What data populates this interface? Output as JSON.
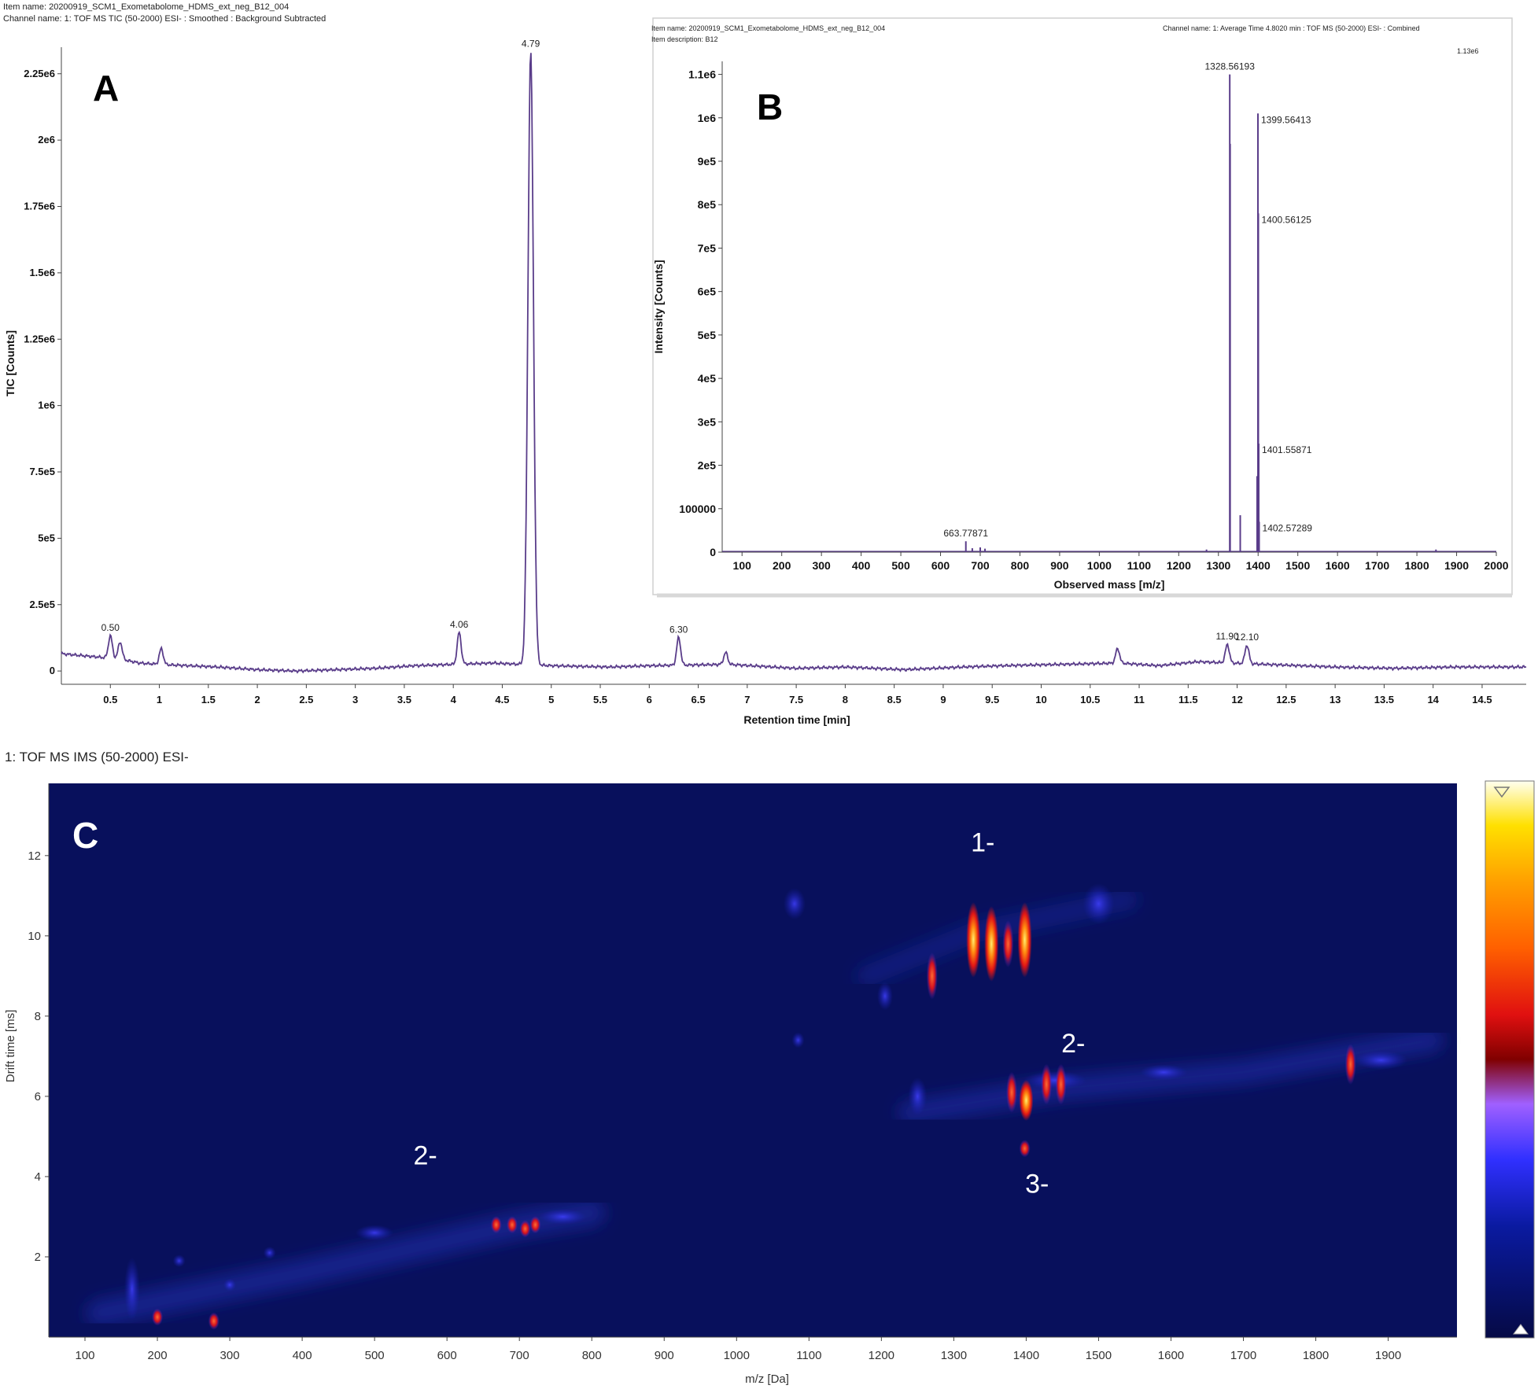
{
  "header_a": {
    "item_name": "Item name: 20200919_SCM1_Exometabolome_HDMS_ext_neg_B12_004",
    "channel_name": "Channel name: 1: TOF MS TIC (50-2000) ESI- : Smoothed : Background Subtracted"
  },
  "header_b": {
    "item_name": "Item name: 20200919_SCM1_Exometabolome_HDMS_ext_neg_B12_004",
    "item_description": "Item description: B12",
    "channel_name": "Channel name: 1: Average Time 4.8020 min : TOF MS (50-2000) ESI- : Combined",
    "max_label": "1.13e6"
  },
  "header_c": {
    "channel_name": "1: TOF MS IMS (50-2000) ESI-"
  },
  "panel_labels": {
    "a": "A",
    "b": "B",
    "c": "C"
  },
  "colors": {
    "trace": "#5a3d8a",
    "heatmap_bg": "#08105c"
  },
  "chart_data": [
    {
      "panel": "A",
      "type": "line",
      "xlabel": "Retention time [min]",
      "ylabel": "TIC [Counts]",
      "xlim": [
        0,
        14.95
      ],
      "ylim": [
        -50000,
        2350000
      ],
      "xticks": [
        "0.5",
        "1",
        "1.5",
        "2",
        "2.5",
        "3",
        "3.5",
        "4",
        "4.5",
        "5",
        "5.5",
        "6",
        "6.5",
        "7",
        "7.5",
        "8",
        "8.5",
        "9",
        "9.5",
        "10",
        "10.5",
        "11",
        "11.5",
        "12",
        "12.5",
        "13",
        "13.5",
        "14",
        "14.5"
      ],
      "yticks": [
        {
          "value": 0,
          "label": "0"
        },
        {
          "value": 250000,
          "label": "2.5e5"
        },
        {
          "value": 500000,
          "label": "5e5"
        },
        {
          "value": 750000,
          "label": "7.5e5"
        },
        {
          "value": 1000000,
          "label": "1e6"
        },
        {
          "value": 1250000,
          "label": "1.25e6"
        },
        {
          "value": 1500000,
          "label": "1.5e6"
        },
        {
          "value": 1750000,
          "label": "1.75e6"
        },
        {
          "value": 2000000,
          "label": "2e6"
        },
        {
          "value": 2250000,
          "label": "2.25e6"
        }
      ],
      "baseline": [
        [
          0.0,
          65000
        ],
        [
          0.3,
          55000
        ],
        [
          0.6,
          45000
        ],
        [
          0.8,
          30000
        ],
        [
          1.0,
          25000
        ],
        [
          1.3,
          20000
        ],
        [
          1.6,
          15000
        ],
        [
          2.0,
          5000
        ],
        [
          2.4,
          0
        ],
        [
          2.8,
          5000
        ],
        [
          3.2,
          10000
        ],
        [
          3.6,
          20000
        ],
        [
          4.0,
          25000
        ],
        [
          4.4,
          30000
        ],
        [
          5.0,
          20000
        ],
        [
          5.6,
          15000
        ],
        [
          6.0,
          20000
        ],
        [
          6.8,
          25000
        ],
        [
          7.5,
          10000
        ],
        [
          8.0,
          15000
        ],
        [
          8.6,
          5000
        ],
        [
          9.2,
          15000
        ],
        [
          9.6,
          20000
        ],
        [
          10.2,
          25000
        ],
        [
          10.8,
          30000
        ],
        [
          11.2,
          20000
        ],
        [
          11.6,
          35000
        ],
        [
          12.3,
          25000
        ],
        [
          13.0,
          15000
        ],
        [
          13.6,
          10000
        ],
        [
          14.2,
          15000
        ],
        [
          14.95,
          15000
        ]
      ],
      "peaks": [
        {
          "rt": 0.5,
          "height": 85000,
          "label": "0.50"
        },
        {
          "rt": 0.6,
          "height": 65000,
          "label": ""
        },
        {
          "rt": 1.02,
          "height": 60000,
          "label": ""
        },
        {
          "rt": 4.06,
          "height": 120000,
          "label": "4.06"
        },
        {
          "rt": 4.79,
          "height": 2310000,
          "label": "4.79"
        },
        {
          "rt": 6.3,
          "height": 105000,
          "label": "6.30"
        },
        {
          "rt": 6.78,
          "height": 45000,
          "label": ""
        },
        {
          "rt": 10.78,
          "height": 55000,
          "label": ""
        },
        {
          "rt": 11.9,
          "height": 70000,
          "label": "11.90"
        },
        {
          "rt": 12.1,
          "height": 70000,
          "label": "12.10"
        }
      ]
    },
    {
      "panel": "B",
      "type": "bar",
      "xlabel": "Observed mass [m/z]",
      "ylabel": "Intensity [Counts]",
      "xlim": [
        50,
        2000
      ],
      "ylim": [
        0,
        1130000
      ],
      "xticks": [
        "100",
        "200",
        "300",
        "400",
        "500",
        "600",
        "700",
        "800",
        "900",
        "1000",
        "1100",
        "1200",
        "1300",
        "1400",
        "1500",
        "1600",
        "1700",
        "1800",
        "1900",
        "2000"
      ],
      "yticks": [
        {
          "value": 0,
          "label": "0"
        },
        {
          "value": 100000,
          "label": "100000"
        },
        {
          "value": 200000,
          "label": "2e5"
        },
        {
          "value": 300000,
          "label": "3e5"
        },
        {
          "value": 400000,
          "label": "4e5"
        },
        {
          "value": 500000,
          "label": "5e5"
        },
        {
          "value": 600000,
          "label": "6e5"
        },
        {
          "value": 700000,
          "label": "7e5"
        },
        {
          "value": 800000,
          "label": "8e5"
        },
        {
          "value": 900000,
          "label": "9e5"
        },
        {
          "value": 1000000,
          "label": "1e6"
        },
        {
          "value": 1100000,
          "label": "1.1e6"
        }
      ],
      "peaks": [
        {
          "mz": 663.77871,
          "intensity": 25000,
          "label": "663.77871"
        },
        {
          "mz": 680,
          "intensity": 9000,
          "label": ""
        },
        {
          "mz": 700,
          "intensity": 11000,
          "label": ""
        },
        {
          "mz": 712,
          "intensity": 8000,
          "label": ""
        },
        {
          "mz": 1270,
          "intensity": 6000,
          "label": ""
        },
        {
          "mz": 1328.56193,
          "intensity": 1100000,
          "label": "1328.56193"
        },
        {
          "mz": 1329.5,
          "intensity": 940000,
          "label": ""
        },
        {
          "mz": 1355,
          "intensity": 85000,
          "label": ""
        },
        {
          "mz": 1397.5,
          "intensity": 175000,
          "label": ""
        },
        {
          "mz": 1399.56413,
          "intensity": 1010000,
          "label": "1399.56413"
        },
        {
          "mz": 1400.56125,
          "intensity": 780000,
          "label": "1400.56125"
        },
        {
          "mz": 1401.55871,
          "intensity": 250000,
          "label": "1401.55871"
        },
        {
          "mz": 1402.57289,
          "intensity": 70000,
          "label": "1402.57289"
        },
        {
          "mz": 1848,
          "intensity": 6000,
          "label": ""
        }
      ]
    },
    {
      "panel": "C",
      "type": "heatmap",
      "xlabel": "m/z [Da]",
      "ylabel": "Drift time [ms]",
      "xlim": [
        50,
        1995
      ],
      "ylim": [
        0,
        13.8
      ],
      "xticks": [
        "100",
        "200",
        "300",
        "400",
        "500",
        "600",
        "700",
        "800",
        "900",
        "1000",
        "1100",
        "1200",
        "1300",
        "1400",
        "1500",
        "1600",
        "1700",
        "1800",
        "1900"
      ],
      "yticks": [
        "2",
        "4",
        "6",
        "8",
        "10",
        "12"
      ],
      "annotations": [
        {
          "text": "1-",
          "mz": 1340,
          "dt": 12.1
        },
        {
          "text": "2-",
          "mz": 1465,
          "dt": 7.1
        },
        {
          "text": "2-",
          "mz": 570,
          "dt": 4.3
        },
        {
          "text": "3-",
          "mz": 1415,
          "dt": 3.6
        }
      ],
      "spots": [
        {
          "mz": 1327,
          "dt": 9.9,
          "intensity": 0.95
        },
        {
          "mz": 1352,
          "dt": 9.8,
          "intensity": 0.8
        },
        {
          "mz": 1375,
          "dt": 9.8,
          "intensity": 0.65
        },
        {
          "mz": 1398,
          "dt": 9.9,
          "intensity": 0.9
        },
        {
          "mz": 1270,
          "dt": 9.0,
          "intensity": 0.55
        },
        {
          "mz": 1400,
          "dt": 5.9,
          "intensity": 0.9
        },
        {
          "mz": 1380,
          "dt": 6.1,
          "intensity": 0.55
        },
        {
          "mz": 1428,
          "dt": 6.3,
          "intensity": 0.55
        },
        {
          "mz": 1448,
          "dt": 6.3,
          "intensity": 0.55
        },
        {
          "mz": 1398,
          "dt": 4.7,
          "intensity": 0.55
        },
        {
          "mz": 1848,
          "dt": 6.8,
          "intensity": 0.7
        },
        {
          "mz": 668,
          "dt": 2.8,
          "intensity": 0.55
        },
        {
          "mz": 690,
          "dt": 2.8,
          "intensity": 0.55
        },
        {
          "mz": 708,
          "dt": 2.7,
          "intensity": 0.6
        },
        {
          "mz": 722,
          "dt": 2.8,
          "intensity": 0.55
        },
        {
          "mz": 200,
          "dt": 0.5,
          "intensity": 0.45
        },
        {
          "mz": 278,
          "dt": 0.4,
          "intensity": 0.45
        }
      ]
    }
  ]
}
